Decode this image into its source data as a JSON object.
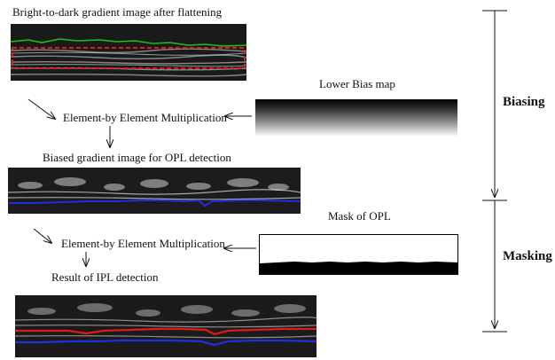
{
  "labels": {
    "gradient_title": "Bright-to-dark gradient image after flattening",
    "lower_bias_map": "Lower Bias map",
    "multiplication_1": "Element-by Element Multiplication",
    "biased_gradient": "Biased gradient image for OPL detection",
    "mask_of_opl": "Mask of OPL",
    "multiplication_2": "Element-by Element Multiplication",
    "result_ipl": "Result of IPL detection"
  },
  "phases": {
    "biasing": "Biasing",
    "masking": "Masking"
  },
  "colors": {
    "green_boundary": "#19c219",
    "red_boundary": "#e01b1b",
    "blue_boundary": "#1f2fe0",
    "roi_dashed_box": "#e01b1b"
  }
}
